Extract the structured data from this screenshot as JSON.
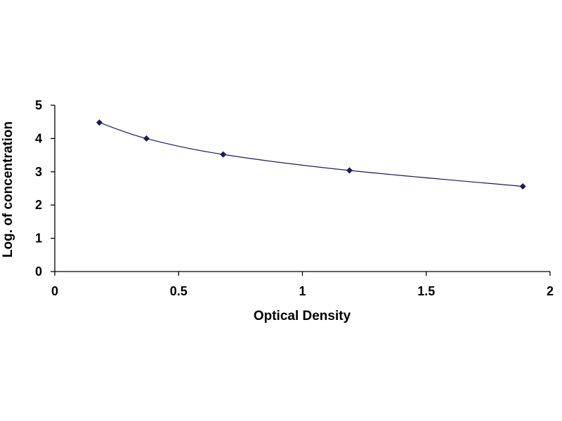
{
  "chart_data": {
    "type": "scatter",
    "xlabel": "Optical Density",
    "ylabel": "Log. of concentration",
    "xlim": [
      0,
      2
    ],
    "ylim": [
      0,
      5
    ],
    "x_ticks": [
      "0",
      "0.5",
      "1",
      "1.5",
      "2"
    ],
    "y_ticks": [
      "0",
      "1",
      "2",
      "3",
      "4",
      "5"
    ],
    "grid": false,
    "legend": "none",
    "trendline": "smooth curve through points",
    "series": [
      {
        "points": [
          {
            "x": 0.18,
            "y": 4.48
          },
          {
            "x": 0.37,
            "y": 4.0
          },
          {
            "x": 0.68,
            "y": 3.52
          },
          {
            "x": 1.19,
            "y": 3.04
          },
          {
            "x": 1.89,
            "y": 2.56
          }
        ]
      }
    ],
    "colors": {
      "marker": "#1a1a5c",
      "line": "#1a1a5c",
      "axis": "#000000"
    }
  }
}
